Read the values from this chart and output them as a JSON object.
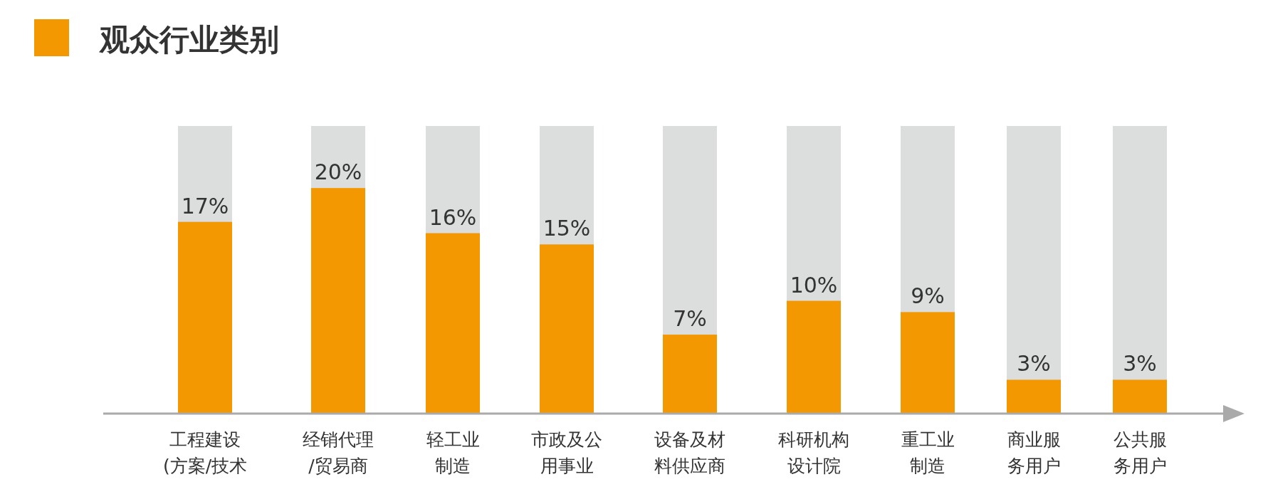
{
  "chart_data": {
    "type": "bar",
    "title": "观众行业类别",
    "categories": [
      "工程建设(方案/技术",
      "经销代理/贸易商",
      "轻工业制造",
      "市政及公用事业",
      "设备及材料供应商",
      "科研机构设计院",
      "重工业制造",
      "商业服务用户",
      "公共服务用户"
    ],
    "values": [
      17,
      20,
      16,
      15,
      7,
      10,
      9,
      3,
      3
    ],
    "value_labels": [
      "17%",
      "20%",
      "16%",
      "15%",
      "7%",
      "10%",
      "9%",
      "3%",
      "3%"
    ],
    "color": "#f39800"
  }
}
